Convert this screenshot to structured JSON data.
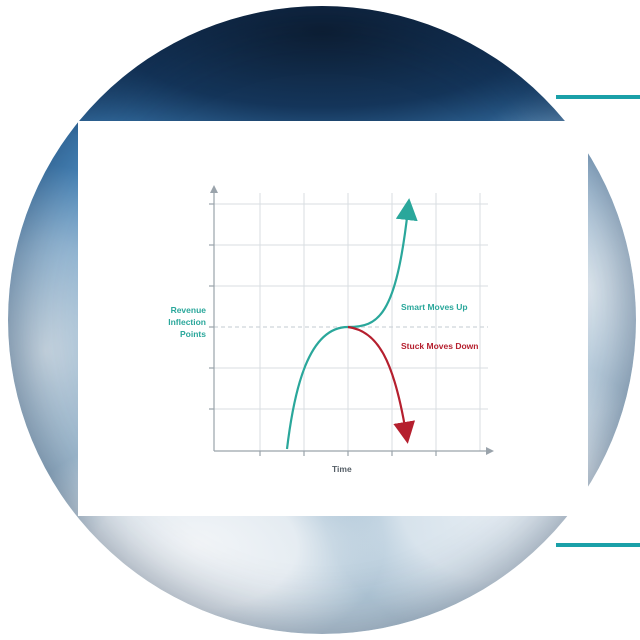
{
  "diagram": {
    "y_axis_label_lines": [
      "Revenue",
      "Inflection",
      "Points"
    ],
    "x_axis_label": "Time",
    "curve_up_label": "Smart Moves Up",
    "curve_down_label": "Stuck Moves Down",
    "colors": {
      "up_curve": "#2aa79b",
      "down_curve": "#b51f2e",
      "accent": "#1aa0a8",
      "grid": "#d8dde2"
    }
  },
  "background": {
    "description_icon": "earth-from-space-photo-icon"
  }
}
